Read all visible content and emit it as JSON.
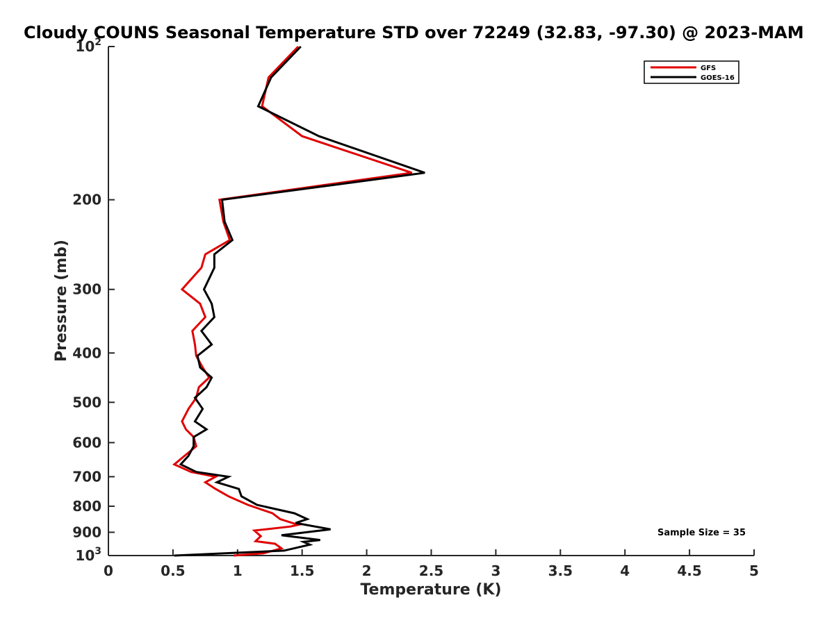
{
  "chart_data": {
    "type": "line",
    "title": "Cloudy COUNS Seasonal Temperature STD over 72249 (32.83, -97.30) @ 2023-MAM",
    "xlabel": "Temperature (K)",
    "ylabel": "Pressure (mb)",
    "xlim": [
      0,
      5
    ],
    "ylim": [
      100,
      1000
    ],
    "yscale": "log",
    "y_reversed": true,
    "x_ticks": [
      {
        "value": 0,
        "label": "0"
      },
      {
        "value": 0.5,
        "label": "0.5"
      },
      {
        "value": 1,
        "label": "1"
      },
      {
        "value": 1.5,
        "label": "1.5"
      },
      {
        "value": 2,
        "label": "2"
      },
      {
        "value": 2.5,
        "label": "2.5"
      },
      {
        "value": 3,
        "label": "3"
      },
      {
        "value": 3.5,
        "label": "3.5"
      },
      {
        "value": 4,
        "label": "4"
      },
      {
        "value": 4.5,
        "label": "4.5"
      },
      {
        "value": 5,
        "label": "5"
      }
    ],
    "y_ticks": [
      {
        "value": 100,
        "base": "10",
        "exp": "2"
      },
      {
        "value": 200,
        "label": "200"
      },
      {
        "value": 300,
        "label": "300"
      },
      {
        "value": 400,
        "label": "400"
      },
      {
        "value": 500,
        "label": "500"
      },
      {
        "value": 600,
        "label": "600"
      },
      {
        "value": 700,
        "label": "700"
      },
      {
        "value": 800,
        "label": "800"
      },
      {
        "value": 900,
        "label": "900"
      },
      {
        "value": 1000,
        "base": "10",
        "exp": "3"
      }
    ],
    "legend": {
      "position": "top-right",
      "entries": [
        {
          "name": "GFS",
          "color": "#e00000"
        },
        {
          "name": "GOES-16",
          "color": "#000000"
        }
      ]
    },
    "annotation": "Sample Size = 35",
    "series": [
      {
        "name": "GFS",
        "color": "#e00000",
        "points": [
          [
            1.47,
            100
          ],
          [
            1.24,
            115
          ],
          [
            1.19,
            131
          ],
          [
            1.5,
            150
          ],
          [
            2.35,
            177
          ],
          [
            0.86,
            200
          ],
          [
            0.89,
            221
          ],
          [
            0.94,
            240
          ],
          [
            0.75,
            256
          ],
          [
            0.72,
            272
          ],
          [
            0.57,
            300
          ],
          [
            0.71,
            320
          ],
          [
            0.75,
            340
          ],
          [
            0.65,
            362
          ],
          [
            0.67,
            385
          ],
          [
            0.68,
            405
          ],
          [
            0.73,
            427
          ],
          [
            0.78,
            447
          ],
          [
            0.7,
            467
          ],
          [
            0.68,
            490
          ],
          [
            0.62,
            515
          ],
          [
            0.57,
            545
          ],
          [
            0.6,
            565
          ],
          [
            0.66,
            585
          ],
          [
            0.68,
            610
          ],
          [
            0.59,
            637
          ],
          [
            0.51,
            662
          ],
          [
            0.64,
            685
          ],
          [
            0.83,
            700
          ],
          [
            0.75,
            718
          ],
          [
            0.83,
            740
          ],
          [
            0.93,
            765
          ],
          [
            1.08,
            795
          ],
          [
            1.27,
            826
          ],
          [
            1.33,
            848
          ],
          [
            1.47,
            870
          ],
          [
            1.41,
            877
          ],
          [
            1.13,
            893
          ],
          [
            1.18,
            916
          ],
          [
            1.14,
            937
          ],
          [
            1.29,
            948
          ],
          [
            1.34,
            968
          ],
          [
            1.2,
            990
          ],
          [
            0.97,
            1000
          ]
        ]
      },
      {
        "name": "GOES-16",
        "color": "#000000",
        "points": [
          [
            1.49,
            100
          ],
          [
            1.26,
            115
          ],
          [
            1.16,
            131
          ],
          [
            1.63,
            150
          ],
          [
            2.45,
            177
          ],
          [
            0.88,
            200
          ],
          [
            0.9,
            221
          ],
          [
            0.96,
            240
          ],
          [
            0.82,
            256
          ],
          [
            0.82,
            272
          ],
          [
            0.74,
            300
          ],
          [
            0.8,
            320
          ],
          [
            0.82,
            340
          ],
          [
            0.72,
            362
          ],
          [
            0.8,
            385
          ],
          [
            0.69,
            405
          ],
          [
            0.71,
            427
          ],
          [
            0.8,
            447
          ],
          [
            0.76,
            467
          ],
          [
            0.67,
            490
          ],
          [
            0.73,
            515
          ],
          [
            0.67,
            545
          ],
          [
            0.76,
            565
          ],
          [
            0.66,
            585
          ],
          [
            0.66,
            610
          ],
          [
            0.62,
            637
          ],
          [
            0.56,
            662
          ],
          [
            0.68,
            685
          ],
          [
            0.93,
            700
          ],
          [
            0.84,
            718
          ],
          [
            1.01,
            740
          ],
          [
            1.03,
            765
          ],
          [
            1.15,
            795
          ],
          [
            1.44,
            826
          ],
          [
            1.54,
            848
          ],
          [
            1.45,
            863
          ],
          [
            1.72,
            888
          ],
          [
            1.34,
            912
          ],
          [
            1.64,
            932
          ],
          [
            1.51,
            940
          ],
          [
            1.56,
            952
          ],
          [
            1.36,
            978
          ],
          [
            0.51,
            1000
          ]
        ]
      }
    ]
  }
}
